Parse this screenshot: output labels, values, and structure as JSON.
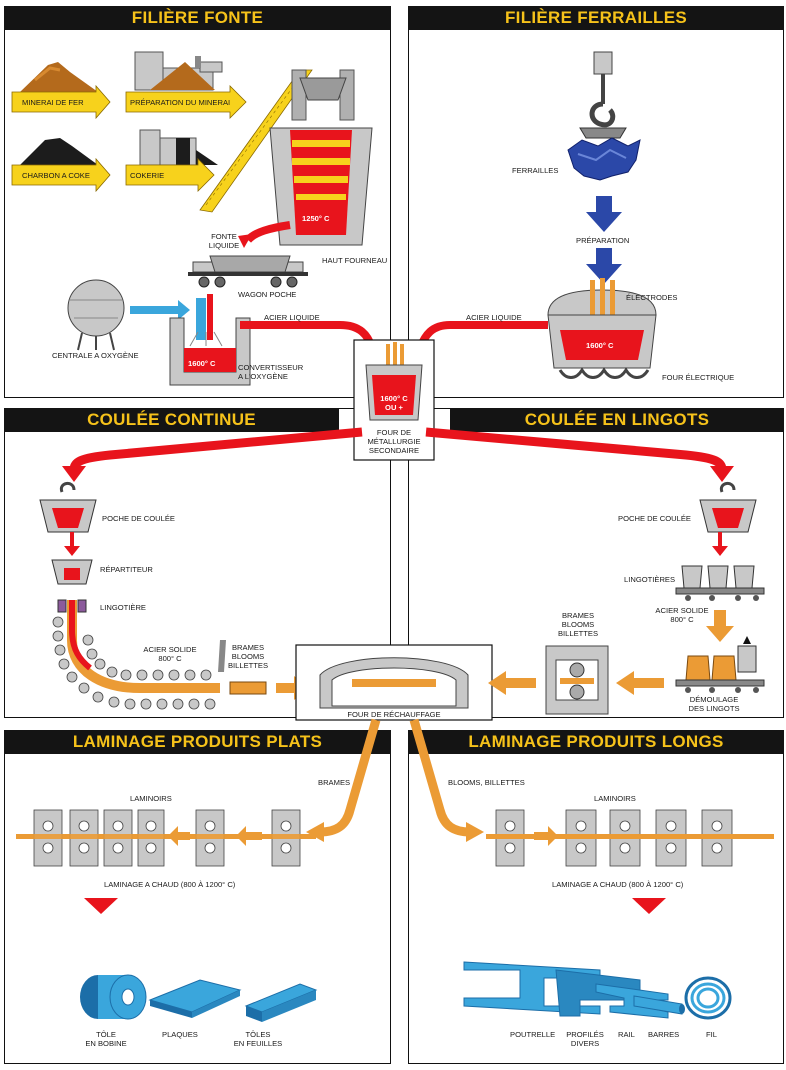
{
  "panels": {
    "filiere_fonte": "FILIÈRE FONTE",
    "filiere_ferrailles": "FILIÈRE FERRAILLES",
    "coulee_continue": "COULÉE CONTINUE",
    "coulee_lingots": "COULÉE EN LINGOTS",
    "laminage_plats": "LAMINAGE PRODUITS PLATS",
    "laminage_longs": "LAMINAGE PRODUITS LONGS"
  },
  "fonte": {
    "minerai_de_fer": "MINERAI DE FER",
    "preparation_minerai": "PRÉPARATION DU MINERAI",
    "charbon_a_coke": "CHARBON A COKE",
    "cokerie": "COKERIE",
    "temp_haut_fourneau": "1250° C",
    "haut_fourneau": "HAUT FOURNEAU",
    "fonte_liquide_1": "FONTE",
    "fonte_liquide_2": "LIQUIDE",
    "wagon_poche": "WAGON POCHE",
    "centrale_oxygene": "CENTRALE A OXYGÈNE",
    "acier_liquide": "ACIER LIQUIDE",
    "temp_convertisseur": "1600° C",
    "convertisseur_1": "CONVERTISSEUR",
    "convertisseur_2": "A L'OXYGÈNE"
  },
  "ferrailles": {
    "ferrailles": "FERRAILLES",
    "preparation": "PRÉPARATION",
    "electrodes": "ÉLECTRODES",
    "acier_liquide": "ACIER LIQUIDE",
    "temp_four": "1600° C",
    "four_electrique": "FOUR ÉLECTRIQUE"
  },
  "secondaire": {
    "temp_1": "1600° C",
    "temp_2": "ou +",
    "label_1": "FOUR DE",
    "label_2": "MÉTALLURGIE",
    "label_3": "SECONDAIRE"
  },
  "continue": {
    "poche_de_coulee": "POCHE DE COULÉE",
    "repartiteur": "RÉPARTITEUR",
    "lingotiere": "LINGOTIÈRE",
    "acier_solide_1": "ACIER SOLIDE",
    "acier_solide_2": "800° C",
    "brames": "BRAMES",
    "blooms": "BLOOMS",
    "billettes": "BILLETTES"
  },
  "lingots": {
    "poche_de_coulee": "POCHE DE COULÉE",
    "lingotieres": "LINGOTIÈRES",
    "acier_solide_1": "ACIER SOLIDE",
    "acier_solide_2": "800° C",
    "brames": "BRAMES",
    "blooms": "BLOOMS",
    "billettes": "BILLETTES",
    "demoulage_1": "DÉMOULAGE",
    "demoulage_2": "DES LINGOTS"
  },
  "rechauffage": {
    "label": "FOUR DE RÉCHAUFFAGE"
  },
  "plats": {
    "brames": "BRAMES",
    "laminoirs": "LAMINOIRS",
    "laminage_chaud": "LAMINAGE A CHAUD (800 à 1200° C)",
    "tole_bobine_1": "TÔLE",
    "tole_bobine_2": "EN BOBINE",
    "plaques": "PLAQUES",
    "toles_feuilles_1": "TÔLES",
    "toles_feuilles_2": "EN FEUILLES"
  },
  "longs": {
    "blooms_billettes": "BLOOMS, BILLETTES",
    "laminoirs": "LAMINOIRS",
    "laminage_chaud": "LAMINAGE A CHAUD (800 à 1200° C)",
    "poutrelle": "POUTRELLE",
    "profiles_1": "PROFILÉS",
    "profiles_2": "DIVERS",
    "rail": "RAIL",
    "barres": "BARRES",
    "fil": "FIL"
  },
  "colors": {
    "title_bg": "#141414",
    "title_text": "#f6c21a",
    "molten_red": "#e8141c",
    "yellow": "#f7d21c",
    "orange": "#eb9b35",
    "blue_arrow": "#2b48a8",
    "steel_blue": "#3aa6dc",
    "machine_grey": "#c8c8c8"
  }
}
